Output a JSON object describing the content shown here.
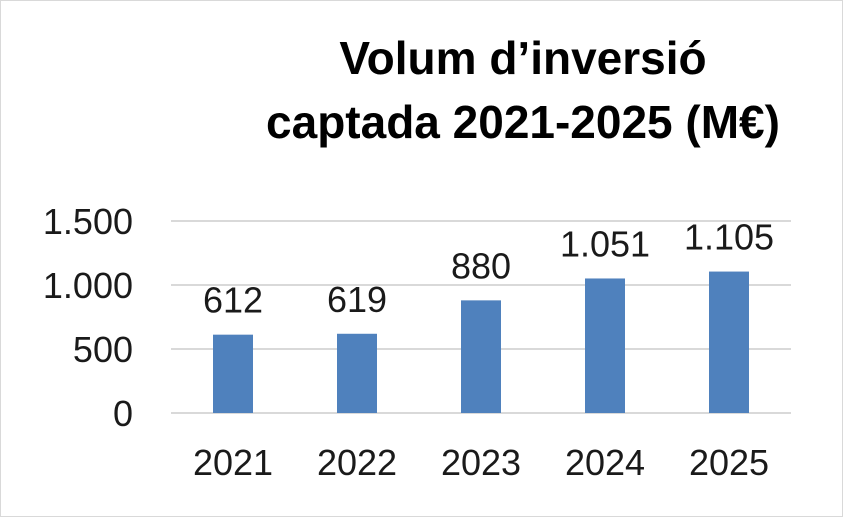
{
  "chart_data": {
    "type": "bar",
    "title_lines": [
      "Volum d’inversió",
      "captada 2021-2025 (M€)"
    ],
    "categories": [
      "2021",
      "2022",
      "2023",
      "2024",
      "2025"
    ],
    "values": [
      612,
      619,
      880,
      1051,
      1105
    ],
    "data_labels": [
      "612",
      "619",
      "880",
      "1.051",
      "1.105"
    ],
    "y_ticks": [
      {
        "value": 0,
        "label": "0"
      },
      {
        "value": 500,
        "label": "500"
      },
      {
        "value": 1000,
        "label": "1.000"
      },
      {
        "value": 1500,
        "label": "1.500"
      }
    ],
    "ylim": [
      0,
      1500
    ],
    "grid": true,
    "legend": "none",
    "bar_color": "#4f81bd",
    "grid_color": "#d9d9d9"
  }
}
